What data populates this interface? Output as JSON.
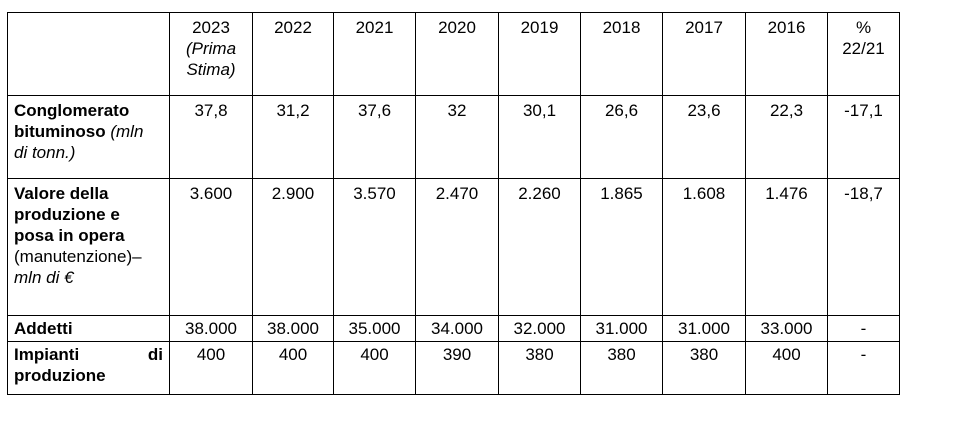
{
  "table": {
    "header": {
      "years": [
        "2023",
        "2022",
        "2021",
        "2020",
        "2019",
        "2018",
        "2017",
        "2016"
      ],
      "first_year_note_line1": "(Prima",
      "first_year_note_line2": "Stima)",
      "pct_line1": "%",
      "pct_line2": "22/21"
    },
    "rows": [
      {
        "label_bold_1": "Conglomerato",
        "label_bold_2": "bituminoso",
        "label_italic_1": "(mln",
        "label_italic_2": "di tonn.)",
        "values": [
          "37,8",
          "31,2",
          "37,6",
          "32",
          "30,1",
          "26,6",
          "23,6",
          "22,3"
        ],
        "pct": "-17,1"
      },
      {
        "label_bold_1": "Valore della",
        "label_bold_2": "produzione e",
        "label_bold_3": "posa in opera",
        "label_plain": "(manutenzione)–",
        "label_italic": "mln di €",
        "values": [
          "3.600",
          "2.900",
          "3.570",
          "2.470",
          "2.260",
          "1.865",
          "1.608",
          "1.476"
        ],
        "pct": "-18,7"
      },
      {
        "label_bold": "Addetti",
        "values": [
          "38.000",
          "38.000",
          "35.000",
          "34.000",
          "32.000",
          "31.000",
          "31.000",
          "33.000"
        ],
        "pct": "-"
      },
      {
        "label_bold_w1": "Impianti",
        "label_bold_w2": "di",
        "label_bold_2": "produzione",
        "values": [
          "400",
          "400",
          "400",
          "390",
          "380",
          "380",
          "380",
          "400"
        ],
        "pct": "-"
      }
    ]
  }
}
